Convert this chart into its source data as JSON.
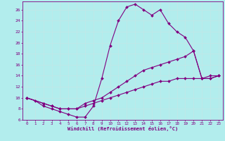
{
  "background_color": "#b2eded",
  "grid_color": "#d0f0f0",
  "line_color": "#800080",
  "marker_color": "#800080",
  "xlabel": "Windchill (Refroidissement éolien,°C)",
  "xlabel_color": "#800080",
  "tick_color": "#800080",
  "xlim": [
    -0.5,
    23.5
  ],
  "ylim": [
    6,
    27.5
  ],
  "xticks": [
    0,
    1,
    2,
    3,
    4,
    5,
    6,
    7,
    8,
    9,
    10,
    11,
    12,
    13,
    14,
    15,
    16,
    17,
    18,
    19,
    20,
    21,
    22,
    23
  ],
  "yticks": [
    6,
    8,
    10,
    12,
    14,
    16,
    18,
    20,
    22,
    24,
    26
  ],
  "line1_x": [
    0,
    1,
    2,
    3,
    4,
    5,
    6,
    7,
    8,
    9,
    10,
    11,
    12,
    13,
    14,
    15,
    16,
    17,
    18,
    19,
    20,
    21,
    22,
    23
  ],
  "line1_y": [
    10,
    9.5,
    8.5,
    8,
    7.5,
    7,
    6.5,
    6.5,
    8.5,
    13.5,
    19.5,
    24,
    26.5,
    27,
    26,
    25,
    26,
    23.5,
    22,
    21,
    18.5,
    13.5,
    13.5,
    14
  ],
  "line2_x": [
    0,
    2,
    3,
    4,
    5,
    6,
    7,
    8,
    9,
    10,
    11,
    12,
    13,
    14,
    15,
    16,
    17,
    18,
    19,
    20,
    21,
    22,
    23
  ],
  "line2_y": [
    10,
    9,
    8.5,
    8,
    8,
    8,
    9,
    9.5,
    10,
    11,
    12,
    13,
    14,
    15,
    15.5,
    16,
    16.5,
    17,
    17.5,
    18.5,
    13.5,
    13.5,
    14
  ],
  "line3_x": [
    0,
    2,
    3,
    4,
    5,
    6,
    7,
    8,
    9,
    10,
    11,
    12,
    13,
    14,
    15,
    16,
    17,
    18,
    19,
    20,
    21,
    22,
    23
  ],
  "line3_y": [
    10,
    9,
    8.5,
    8,
    8,
    8,
    8.5,
    9,
    9.5,
    10,
    10.5,
    11,
    11.5,
    12,
    12.5,
    13,
    13,
    13.5,
    13.5,
    13.5,
    13.5,
    14,
    14
  ]
}
